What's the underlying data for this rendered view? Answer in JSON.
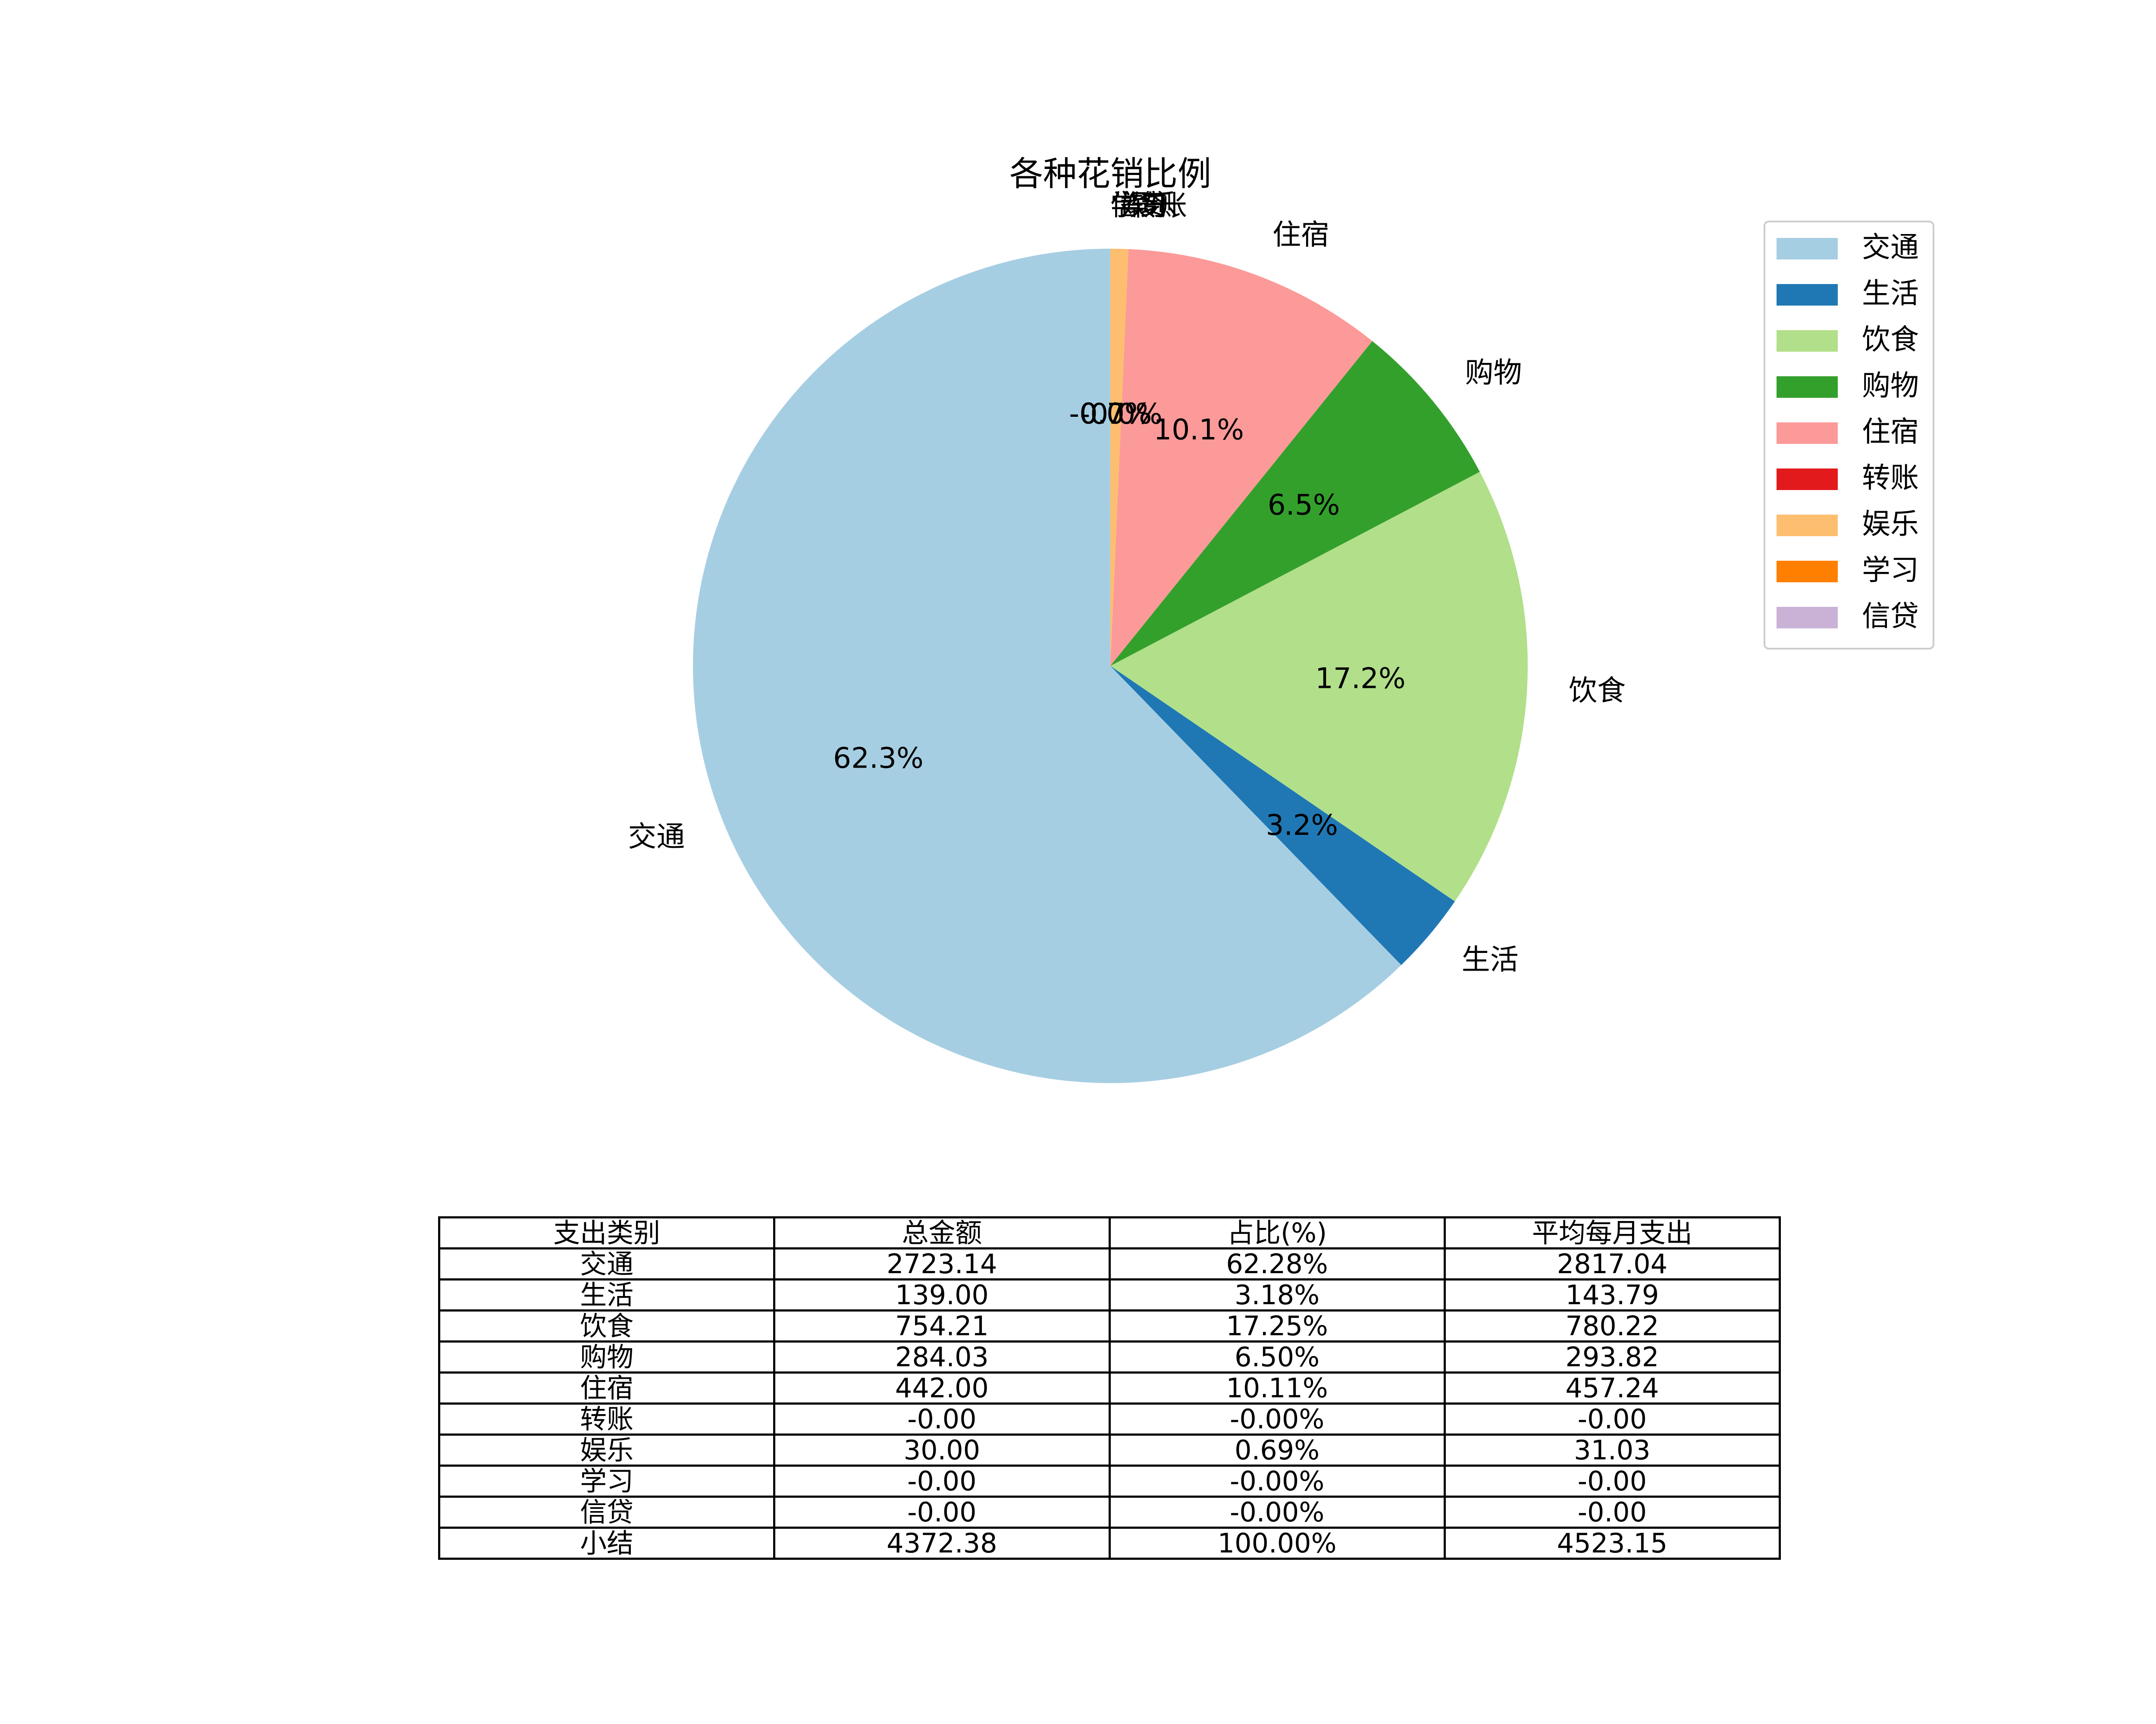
{
  "chart_data": [
    {
      "type": "pie",
      "title": "各种花销比例",
      "start_angle_deg": 90,
      "direction": "counterclockwise",
      "slices": [
        {
          "label": "交通",
          "value": 62.28,
          "pct_text": "62.3%",
          "color": "#a6cee3"
        },
        {
          "label": "生活",
          "value": 3.18,
          "pct_text": "3.2%",
          "color": "#1f78b4"
        },
        {
          "label": "饮食",
          "value": 17.25,
          "pct_text": "17.2%",
          "color": "#b2df8a"
        },
        {
          "label": "购物",
          "value": 6.5,
          "pct_text": "6.5%",
          "color": "#33a02c"
        },
        {
          "label": "住宿",
          "value": 10.11,
          "pct_text": "10.1%",
          "color": "#fb9a99"
        },
        {
          "label": "转账",
          "value": 0.0,
          "pct_text": "-0.0%",
          "color": "#e31a1c"
        },
        {
          "label": "娱乐",
          "value": 0.69,
          "pct_text": "0.7%",
          "color": "#fdbf6f"
        },
        {
          "label": "学习",
          "value": 0.0,
          "pct_text": "-0.0%",
          "color": "#ff7f00"
        },
        {
          "label": "信贷",
          "value": 0.0,
          "pct_text": "-0.0%",
          "color": "#cab2d6"
        }
      ],
      "legend_placement": "right"
    },
    {
      "type": "table",
      "columns": [
        "支出类别",
        "总金额",
        "占比(%)",
        "平均每月支出"
      ],
      "rows": [
        [
          "交通",
          "2723.14",
          "62.28%",
          "2817.04"
        ],
        [
          "生活",
          "139.00",
          "3.18%",
          "143.79"
        ],
        [
          "饮食",
          "754.21",
          "17.25%",
          "780.22"
        ],
        [
          "购物",
          "284.03",
          "6.50%",
          "293.82"
        ],
        [
          "住宿",
          "442.00",
          "10.11%",
          "457.24"
        ],
        [
          "转账",
          "-0.00",
          "-0.00%",
          "-0.00"
        ],
        [
          "娱乐",
          "30.00",
          "0.69%",
          "31.03"
        ],
        [
          "学习",
          "-0.00",
          "-0.00%",
          "-0.00"
        ],
        [
          "信贷",
          "-0.00",
          "-0.00%",
          "-0.00"
        ],
        [
          "小结",
          "4372.38",
          "100.00%",
          "4523.15"
        ]
      ]
    }
  ]
}
